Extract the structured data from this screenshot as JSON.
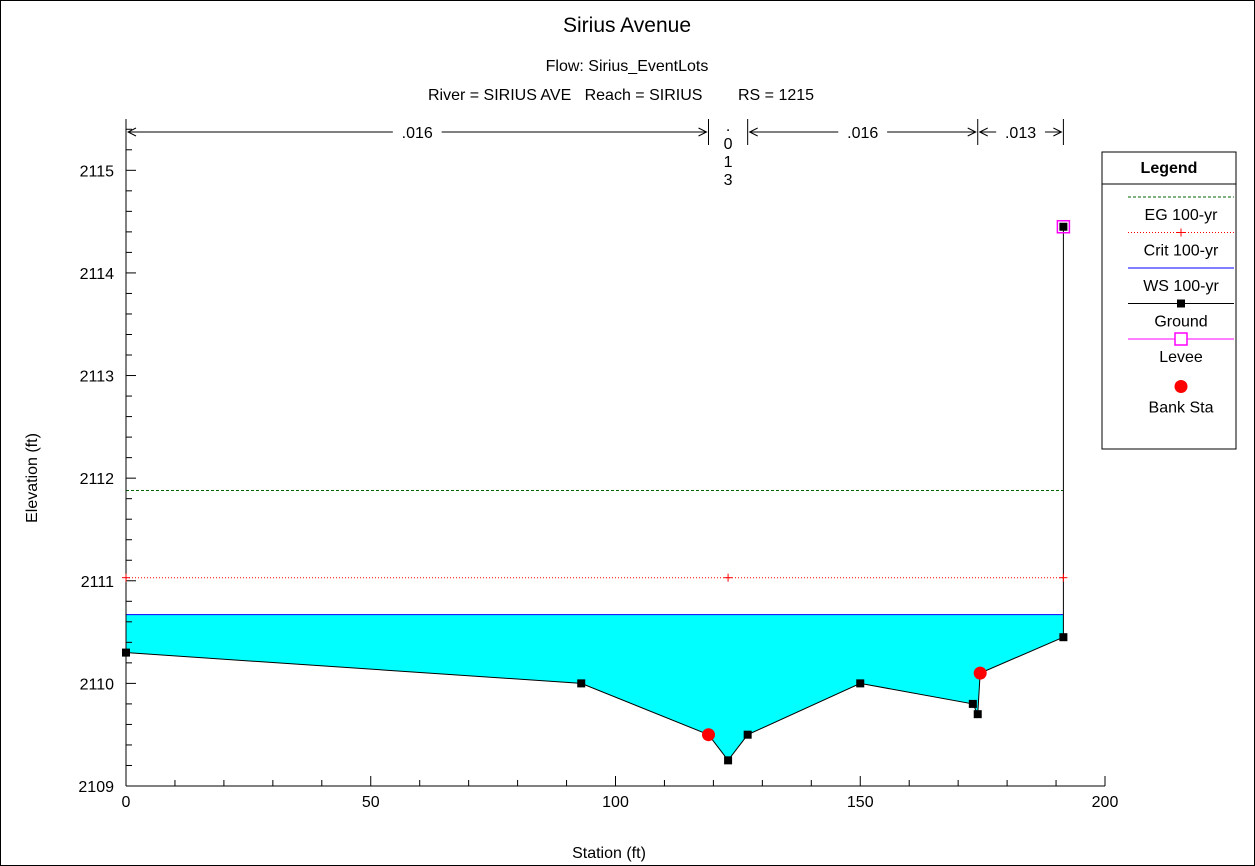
{
  "chart_data": {
    "type": "line",
    "title": "Sirius Avenue",
    "subtitle": "Flow: Sirius_EventLots",
    "header_line": "River = SIRIUS AVE   Reach = SIRIUS        RS = 1215",
    "xlabel": "Station (ft)",
    "ylabel": "Elevation (ft)",
    "xlim": [
      0,
      200
    ],
    "ylim": [
      2109,
      2115.5
    ],
    "x_ticks": [
      0,
      50,
      100,
      150,
      200
    ],
    "y_ticks": [
      2109,
      2110,
      2111,
      2112,
      2113,
      2114,
      2115
    ],
    "grid": false,
    "legend_position": "right",
    "legend_title": "Legend",
    "manning_n": [
      {
        "label": ".016",
        "from": 0,
        "to": 119
      },
      {
        "label": ".013",
        "from": 119,
        "to": 127,
        "vertical": true
      },
      {
        "label": ".016",
        "from": 127,
        "to": 174
      },
      {
        "label": ".013",
        "from": 174,
        "to": 191.5
      }
    ],
    "series": [
      {
        "name": "EG 100-yr",
        "color": "#006400",
        "style": "dashed",
        "y": 2111.88,
        "x": [
          0,
          191.5
        ]
      },
      {
        "name": "Crit 100-yr",
        "color": "#ff0000",
        "style": "dotted-plus",
        "y": 2111.03,
        "x": [
          0,
          191.5
        ],
        "markers_x": [
          0,
          123,
          191.5
        ]
      },
      {
        "name": "WS 100-yr",
        "color": "#0000ff",
        "style": "solid",
        "y": 2110.67,
        "x": [
          0,
          191.5
        ]
      },
      {
        "name": "Ground",
        "color": "#000000",
        "style": "solid-square",
        "x": [
          0,
          93,
          119,
          123,
          127,
          150,
          173,
          174,
          174.5,
          191.5,
          191.5
        ],
        "y": [
          2110.3,
          2110.0,
          2109.5,
          2109.25,
          2109.5,
          2110.0,
          2109.8,
          2109.7,
          2110.1,
          2110.45,
          2114.45
        ]
      },
      {
        "name": "Levee",
        "color": "#ff00ff",
        "style": "open-square",
        "x": [
          191.5
        ],
        "y": [
          2114.45
        ]
      },
      {
        "name": "Bank Sta",
        "color": "#ff0000",
        "style": "filled-circle",
        "x": [
          119,
          174.5
        ],
        "y": [
          2109.5,
          2110.1
        ]
      }
    ]
  }
}
